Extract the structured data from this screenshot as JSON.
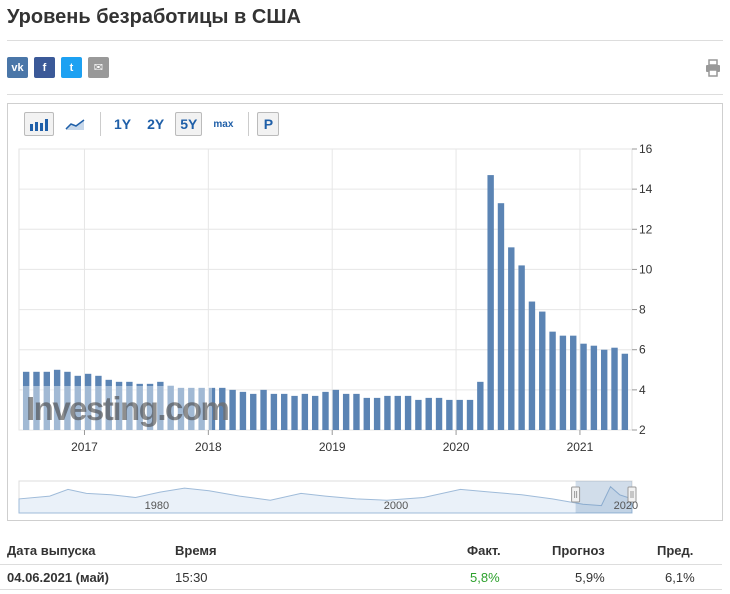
{
  "page": {
    "title": "Уровень безработицы в США"
  },
  "share": [
    {
      "name": "vk",
      "label": "vk",
      "color": "#4a76a8"
    },
    {
      "name": "facebook",
      "label": "f",
      "color": "#3b5998"
    },
    {
      "name": "twitter",
      "label": "t",
      "color": "#1da1f2"
    },
    {
      "name": "email",
      "label": "✉",
      "color": "#999999"
    }
  ],
  "toolbar": {
    "range_1y": "1Y",
    "range_2y": "2Y",
    "range_5y": "5Y",
    "range_max": "max",
    "p": "P",
    "selected": "5Y"
  },
  "chart_data": {
    "type": "bar",
    "watermark": "Investing.com",
    "bar_color": "#5b84b4",
    "x": [
      "2016-07",
      "2016-08",
      "2016-09",
      "2016-10",
      "2016-11",
      "2016-12",
      "2017-01",
      "2017-02",
      "2017-03",
      "2017-04",
      "2017-05",
      "2017-06",
      "2017-07",
      "2017-08",
      "2017-09",
      "2017-10",
      "2017-11",
      "2017-12",
      "2018-01",
      "2018-02",
      "2018-03",
      "2018-04",
      "2018-05",
      "2018-06",
      "2018-07",
      "2018-08",
      "2018-09",
      "2018-10",
      "2018-11",
      "2018-12",
      "2019-01",
      "2019-02",
      "2019-03",
      "2019-04",
      "2019-05",
      "2019-06",
      "2019-07",
      "2019-08",
      "2019-09",
      "2019-10",
      "2019-11",
      "2019-12",
      "2020-01",
      "2020-02",
      "2020-03",
      "2020-04",
      "2020-05",
      "2020-06",
      "2020-07",
      "2020-08",
      "2020-09",
      "2020-10",
      "2020-11",
      "2020-12",
      "2021-01",
      "2021-02",
      "2021-03",
      "2021-04",
      "2021-05"
    ],
    "values": [
      4.9,
      4.9,
      4.9,
      5.0,
      4.9,
      4.7,
      4.8,
      4.7,
      4.5,
      4.4,
      4.4,
      4.3,
      4.3,
      4.4,
      4.2,
      4.1,
      4.1,
      4.1,
      4.1,
      4.1,
      4.0,
      3.9,
      3.8,
      4.0,
      3.8,
      3.8,
      3.7,
      3.8,
      3.7,
      3.9,
      4.0,
      3.8,
      3.8,
      3.6,
      3.6,
      3.7,
      3.7,
      3.7,
      3.5,
      3.6,
      3.6,
      3.5,
      3.5,
      3.5,
      4.4,
      14.7,
      13.3,
      11.1,
      10.2,
      8.4,
      7.9,
      6.9,
      6.7,
      6.7,
      6.3,
      6.2,
      6.0,
      6.1,
      5.8
    ],
    "ylim": [
      2,
      16
    ],
    "y_ticks": [
      2,
      4,
      6,
      8,
      10,
      12,
      14,
      16
    ],
    "x_tick_labels": [
      "2017",
      "2018",
      "2019",
      "2020",
      "2021"
    ],
    "navigator": {
      "labels": [
        "1980",
        "2000",
        "2020"
      ]
    },
    "grid": true
  },
  "table": {
    "headers": {
      "date": "Дата выпуска",
      "time": "Время",
      "actual": "Факт.",
      "forecast": "Прогноз",
      "previous": "Пред."
    },
    "row": {
      "date": "04.06.2021 (май)",
      "time": "15:30",
      "actual": "5,8%",
      "forecast": "5,9%",
      "previous": "6,1%"
    },
    "actual_color": "#2ca02c"
  }
}
